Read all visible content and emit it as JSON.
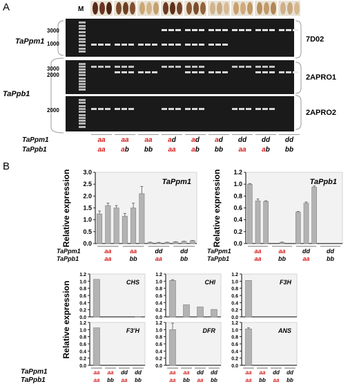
{
  "panelA": {
    "label": "A",
    "marker": "M",
    "gene_labels": [
      "TaPpm1",
      "TaPpb1"
    ],
    "gels": [
      {
        "name": "7D02",
        "size_labels": [
          "3000",
          "1000"
        ]
      },
      {
        "name": "2APRO1",
        "size_labels": [
          "3000",
          "2000"
        ]
      },
      {
        "name": "2APRO2",
        "size_labels": [
          "2000"
        ]
      }
    ],
    "row_labels": [
      "TaPpm1",
      "TaPpb1"
    ],
    "genotypes": [
      {
        "ppm": "aa",
        "ppb": "aa"
      },
      {
        "ppm": "aa",
        "ppb": "ab"
      },
      {
        "ppm": "aa",
        "ppb": "bb"
      },
      {
        "ppm": "ad",
        "ppb": "aa"
      },
      {
        "ppm": "ad",
        "ppb": "ab"
      },
      {
        "ppm": "ad",
        "ppb": "bb"
      },
      {
        "ppm": "dd",
        "ppb": "aa"
      },
      {
        "ppm": "dd",
        "ppb": "ab"
      },
      {
        "ppm": "dd",
        "ppb": "bb"
      }
    ],
    "colors": {
      "gel": "#1a1a1a",
      "band": "#ececec",
      "red": "#d41a1a"
    }
  },
  "panelB": {
    "label": "B",
    "ylabel": "Relative expression",
    "row_labels": [
      "TaPpm1",
      "TaPpb1"
    ],
    "chart_data": [
      {
        "type": "bar",
        "title": "TaPpm1",
        "ylabel": "Relative expression",
        "ylim": [
          0,
          3.0
        ],
        "yticks": [
          "0.0",
          "0.5",
          "1.0",
          "1.5",
          "2.0",
          "2.5",
          "3.0"
        ],
        "groups": [
          {
            "ppm": "aa",
            "ppb": "aa"
          },
          {
            "ppm": "aa",
            "ppb": "bb"
          },
          {
            "ppm": "dd",
            "ppb": "aa"
          },
          {
            "ppm": "dd",
            "ppb": "bb"
          }
        ],
        "values": [
          1.25,
          1.6,
          1.5,
          1.15,
          1.5,
          2.1,
          0.05,
          0.04,
          0.05,
          0.07,
          0.09,
          0.12
        ],
        "errors": [
          0.12,
          0.1,
          0.1,
          0.12,
          0.2,
          0.3,
          0.01,
          0.01,
          0.01,
          0.01,
          0.01,
          0.01
        ]
      },
      {
        "type": "bar",
        "title": "TaPpb1",
        "ylabel": "Relative expression",
        "ylim": [
          0,
          1.2
        ],
        "yticks": [
          "0.0",
          "0.2",
          "0.4",
          "0.6",
          "0.8",
          "1.0",
          "1.2"
        ],
        "groups": [
          {
            "ppm": "aa",
            "ppb": "aa"
          },
          {
            "ppm": "aa",
            "ppb": "bb"
          },
          {
            "ppm": "dd",
            "ppb": "aa"
          },
          {
            "ppm": "dd",
            "ppb": "bb"
          }
        ],
        "values": [
          1.0,
          0.72,
          0.71,
          0.0,
          0.02,
          0.0,
          0.53,
          0.68,
          0.95,
          0.0,
          0.0,
          0.0
        ],
        "errors": [
          0.01,
          0.03,
          0.01,
          0.0,
          0.005,
          0.0,
          0.01,
          0.02,
          0.02,
          0.0,
          0.0,
          0.0
        ]
      },
      {
        "type": "bar",
        "title": "CHS",
        "ylim": [
          0,
          1.2
        ],
        "yticks": [
          "0.0",
          "0.2",
          "0.4",
          "0.6",
          "0.8",
          "1.0",
          "1.2"
        ],
        "values": [
          1.05,
          0.0,
          0.0,
          0.01
        ],
        "errors": [
          0.0,
          0.0,
          0.0,
          0.0
        ]
      },
      {
        "type": "bar",
        "title": "CHI",
        "ylim": [
          0,
          1.2
        ],
        "yticks": [
          "0.0",
          "0.2",
          "0.4",
          "0.6",
          "0.8",
          "1.0",
          "1.2"
        ],
        "values": [
          1.02,
          0.34,
          0.28,
          0.21
        ],
        "errors": [
          0.02,
          0.0,
          0.0,
          0.0
        ]
      },
      {
        "type": "bar",
        "title": "F3H",
        "ylim": [
          0,
          1.2
        ],
        "yticks": [
          "0.0",
          "0.2",
          "0.4",
          "0.6",
          "0.8",
          "1.0",
          "1.2"
        ],
        "values": [
          1.02,
          0.0,
          0.0,
          0.0
        ],
        "errors": [
          0.0,
          0.0,
          0.0,
          0.0
        ]
      },
      {
        "type": "bar",
        "title": "F3'H",
        "ylim": [
          0,
          1.2
        ],
        "yticks": [
          "0.0",
          "0.2",
          "0.4",
          "0.6",
          "0.8",
          "1.0",
          "1.2"
        ],
        "values": [
          1.05,
          0.0,
          0.0,
          0.0
        ],
        "errors": [
          0.0,
          0.0,
          0.0,
          0.0
        ]
      },
      {
        "type": "bar",
        "title": "DFR",
        "ylim": [
          0,
          1.2
        ],
        "yticks": [
          "0.0",
          "0.2",
          "0.4",
          "0.6",
          "0.8",
          "1.0",
          "1.2"
        ],
        "values": [
          1.0,
          0.0,
          0.0,
          0.0
        ],
        "errors": [
          0.18,
          0.0,
          0.0,
          0.0
        ]
      },
      {
        "type": "bar",
        "title": "ANS",
        "ylim": [
          0,
          1.2
        ],
        "yticks": [
          "0.0",
          "0.2",
          "0.4",
          "0.6",
          "0.8",
          "1.0",
          "1.2"
        ],
        "values": [
          1.02,
          0.0,
          0.0,
          0.0
        ],
        "errors": [
          0.03,
          0.0,
          0.0,
          0.0
        ]
      }
    ],
    "small_groups": [
      {
        "ppm": "aa",
        "ppb": "aa"
      },
      {
        "ppm": "aa",
        "ppb": "bb"
      },
      {
        "ppm": "dd",
        "ppb": "aa"
      },
      {
        "ppm": "dd",
        "ppb": "bb"
      }
    ],
    "colors": {
      "bar": "#b3b3b3",
      "bar_edge": "#808080",
      "plot_bg": "#f2f2f2",
      "red": "#d41a1a"
    }
  }
}
